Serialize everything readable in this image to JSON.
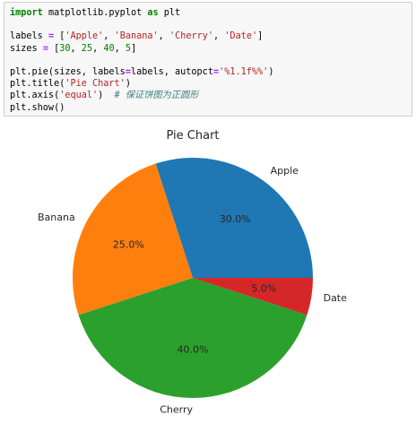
{
  "code_cell": {
    "lines": [
      [
        {
          "t": "import",
          "c": "kw"
        },
        {
          "t": " matplotlib.pyplot ",
          "c": "plain"
        },
        {
          "t": "as",
          "c": "kw"
        },
        {
          "t": " plt",
          "c": "plain"
        }
      ],
      [],
      [
        {
          "t": "labels ",
          "c": "plain"
        },
        {
          "t": "=",
          "c": "op"
        },
        {
          "t": " [",
          "c": "plain"
        },
        {
          "t": "'Apple'",
          "c": "str"
        },
        {
          "t": ", ",
          "c": "plain"
        },
        {
          "t": "'Banana'",
          "c": "str"
        },
        {
          "t": ", ",
          "c": "plain"
        },
        {
          "t": "'Cherry'",
          "c": "str"
        },
        {
          "t": ", ",
          "c": "plain"
        },
        {
          "t": "'Date'",
          "c": "str"
        },
        {
          "t": "]",
          "c": "plain"
        }
      ],
      [
        {
          "t": "sizes ",
          "c": "plain"
        },
        {
          "t": "=",
          "c": "op"
        },
        {
          "t": " [",
          "c": "plain"
        },
        {
          "t": "30",
          "c": "num"
        },
        {
          "t": ", ",
          "c": "plain"
        },
        {
          "t": "25",
          "c": "num"
        },
        {
          "t": ", ",
          "c": "plain"
        },
        {
          "t": "40",
          "c": "num"
        },
        {
          "t": ", ",
          "c": "plain"
        },
        {
          "t": "5",
          "c": "num"
        },
        {
          "t": "]",
          "c": "plain"
        }
      ],
      [],
      [
        {
          "t": "plt.pie(sizes, labels",
          "c": "plain"
        },
        {
          "t": "=",
          "c": "op"
        },
        {
          "t": "labels, autopct",
          "c": "plain"
        },
        {
          "t": "=",
          "c": "op"
        },
        {
          "t": "'%1.1f%%'",
          "c": "str"
        },
        {
          "t": ")",
          "c": "plain"
        }
      ],
      [
        {
          "t": "plt.title(",
          "c": "plain"
        },
        {
          "t": "'Pie Chart'",
          "c": "str"
        },
        {
          "t": ")",
          "c": "plain"
        }
      ],
      [
        {
          "t": "plt.axis(",
          "c": "plain"
        },
        {
          "t": "'equal'",
          "c": "str"
        },
        {
          "t": ")  ",
          "c": "plain"
        },
        {
          "t": "# 保证饼图为正圆形",
          "c": "comment"
        }
      ],
      [
        {
          "t": "plt.show()",
          "c": "plain"
        }
      ]
    ]
  },
  "chart_data": {
    "type": "pie",
    "title": "Pie Chart",
    "labels": [
      "Apple",
      "Banana",
      "Cherry",
      "Date"
    ],
    "values": [
      30,
      25,
      40,
      5
    ],
    "autopct": [
      "30.0%",
      "25.0%",
      "40.0%",
      "5.0%"
    ],
    "colors": [
      "#1f77b4",
      "#ff7f0e",
      "#2ca02c",
      "#d62728"
    ],
    "start_angle_deg": 0,
    "direction": "counterclockwise"
  }
}
